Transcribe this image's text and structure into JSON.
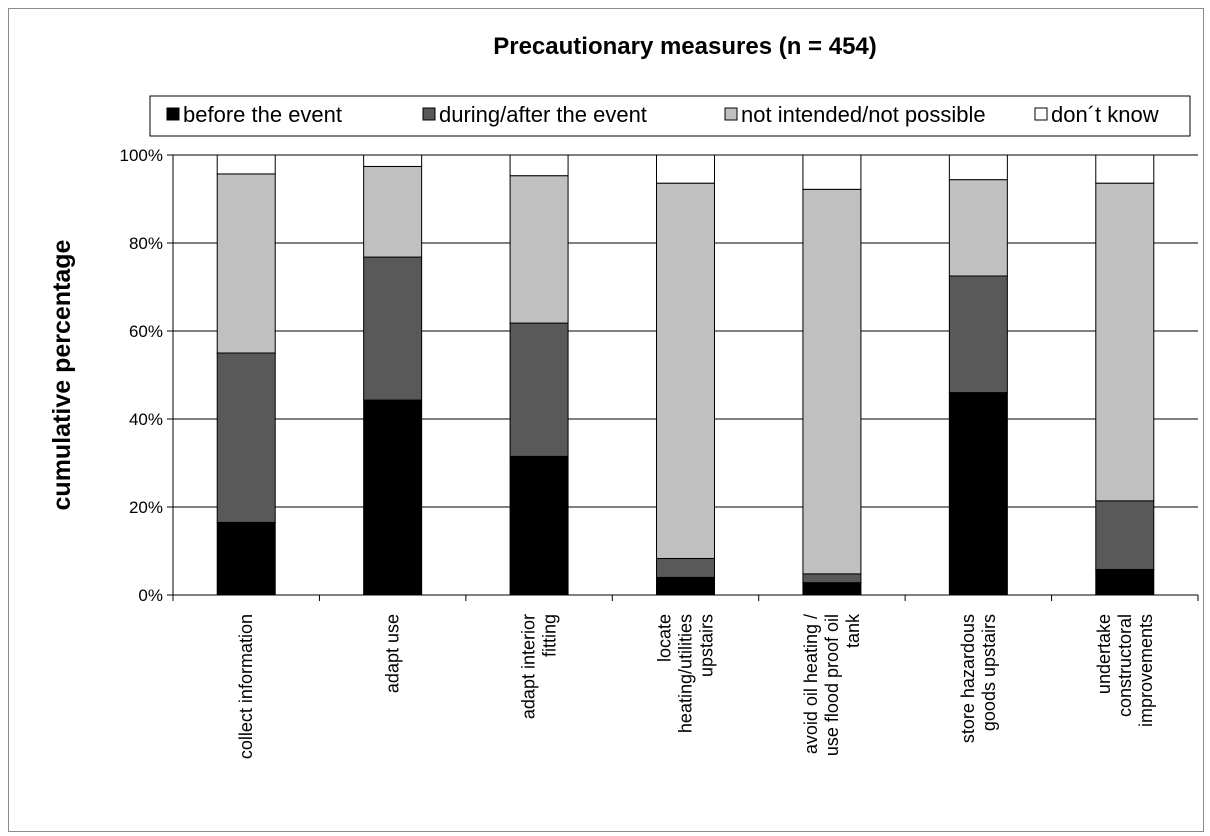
{
  "chart_data": {
    "type": "bar",
    "stacked": true,
    "title": "Precautionary measures (n = 454)",
    "xlabel": "",
    "ylabel": "cumulative percentage",
    "ylim": [
      0,
      100
    ],
    "yticks": [
      "0%",
      "20%",
      "40%",
      "60%",
      "80%",
      "100%"
    ],
    "grid": true,
    "legend_position": "top",
    "categories": [
      "collect information",
      "adapt use",
      "adapt interior fitting",
      "locate heating/utilities upstairs",
      "avoid oil heating / use flood proof oil tank",
      "store hazardous goods upstairs",
      "undertake constructoral improvements"
    ],
    "category_lines": [
      [
        "collect information"
      ],
      [
        "adapt use"
      ],
      [
        "adapt interior",
        "fitting"
      ],
      [
        "locate",
        "heating/utilities",
        "upstairs"
      ],
      [
        "avoid oil heating /",
        "use flood proof oil",
        "tank"
      ],
      [
        "store hazardous",
        "goods upstairs"
      ],
      [
        "undertake",
        "constructoral",
        "improvements"
      ]
    ],
    "series": [
      {
        "name": "before the event",
        "color": "#000000",
        "values": [
          16.5,
          44.3,
          31.5,
          4.0,
          2.8,
          46.0,
          5.8
        ]
      },
      {
        "name": "during/after the event",
        "color": "#595959",
        "values": [
          38.5,
          32.5,
          30.3,
          4.3,
          2.0,
          26.5,
          15.6
        ]
      },
      {
        "name": "not intended/not possible",
        "color": "#c0c0c0",
        "values": [
          40.7,
          20.6,
          33.5,
          85.3,
          87.4,
          21.9,
          72.2
        ]
      },
      {
        "name": "don´t know",
        "color": "#ffffff",
        "values": [
          4.3,
          2.6,
          4.7,
          6.4,
          7.8,
          5.6,
          6.4
        ]
      }
    ]
  }
}
